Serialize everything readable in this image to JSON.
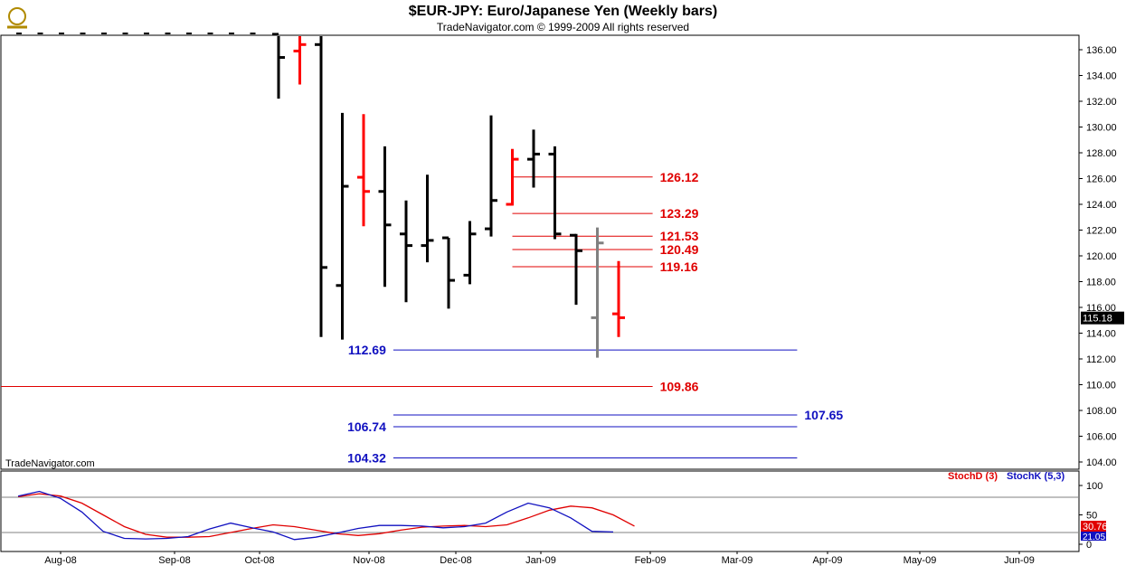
{
  "header": {
    "title": "$EUR-JPY:  Euro/Japanese Yen  (Weekly bars)",
    "subtitle": "TradeNavigator.com © 1999-2009 All rights reserved"
  },
  "watermark": "TradeNavigator.com",
  "colors": {
    "up": "#000000",
    "down": "#ff0000",
    "current": "#808080",
    "level_red": "#e00000",
    "level_blue": "#1010c0",
    "stochD": "#e00000",
    "stochK": "#1010c0"
  },
  "chart_data": {
    "type": "bar",
    "price_axis": {
      "min": 104,
      "max": 137,
      "ticks": [
        "104.00",
        "106.00",
        "108.00",
        "110.00",
        "112.00",
        "114.00",
        "116.00",
        "118.00",
        "120.00",
        "122.00",
        "124.00",
        "126.00",
        "128.00",
        "130.00",
        "132.00",
        "134.00",
        "136.00"
      ]
    },
    "x_labels": [
      "Aug-08",
      "Sep-08",
      "Oct-08",
      "Nov-08",
      "Dec-08",
      "Jan-09",
      "Feb-09",
      "Mar-09",
      "Apr-09",
      "May-09",
      "Jun-09"
    ],
    "last_price_label": "115.18",
    "ohlc": [
      {
        "o": 137.2,
        "h": 137.6,
        "l": 132.2,
        "c": 135.4,
        "col": "up"
      },
      {
        "o": 135.9,
        "h": 137.2,
        "l": 133.3,
        "c": 136.4,
        "col": "down"
      },
      {
        "o": 136.4,
        "h": 137.4,
        "l": 113.7,
        "c": 119.1,
        "col": "up"
      },
      {
        "o": 117.7,
        "h": 131.1,
        "l": 113.5,
        "c": 125.4,
        "col": "up"
      },
      {
        "o": 126.1,
        "h": 131.0,
        "l": 122.3,
        "c": 125.0,
        "col": "down"
      },
      {
        "o": 125.0,
        "h": 128.5,
        "l": 117.6,
        "c": 122.4,
        "col": "up"
      },
      {
        "o": 121.7,
        "h": 124.3,
        "l": 116.4,
        "c": 120.8,
        "col": "up"
      },
      {
        "o": 120.8,
        "h": 126.3,
        "l": 119.5,
        "c": 121.2,
        "col": "up"
      },
      {
        "o": 121.4,
        "h": 121.4,
        "l": 115.9,
        "c": 118.1,
        "col": "up"
      },
      {
        "o": 118.5,
        "h": 122.7,
        "l": 117.8,
        "c": 121.7,
        "col": "up"
      },
      {
        "o": 122.1,
        "h": 130.9,
        "l": 121.5,
        "c": 124.3,
        "col": "up"
      },
      {
        "o": 124.0,
        "h": 128.3,
        "l": 123.9,
        "c": 127.5,
        "col": "down"
      },
      {
        "o": 127.5,
        "h": 129.8,
        "l": 125.3,
        "c": 127.9,
        "col": "up"
      },
      {
        "o": 127.9,
        "h": 128.5,
        "l": 121.3,
        "c": 121.7,
        "col": "up"
      },
      {
        "o": 121.6,
        "h": 121.7,
        "l": 116.2,
        "c": 120.4,
        "col": "up"
      },
      {
        "o": 115.2,
        "h": 122.2,
        "l": 112.1,
        "c": 121.0,
        "col": "current"
      },
      {
        "o": 115.5,
        "h": 119.6,
        "l": 113.7,
        "c": 115.2,
        "col": "down"
      }
    ],
    "levels": [
      {
        "value": 126.12,
        "label": "126.12",
        "color": "red",
        "x1": 11,
        "x2": 17.6,
        "label_side": "right"
      },
      {
        "value": 123.29,
        "label": "123.29",
        "color": "red",
        "x1": 11,
        "x2": 17.6,
        "label_side": "right"
      },
      {
        "value": 121.53,
        "label": "121.53",
        "color": "red",
        "x1": 11,
        "x2": 17.6,
        "label_side": "right"
      },
      {
        "value": 120.49,
        "label": "120.49",
        "color": "red",
        "x1": 11,
        "x2": 17.6,
        "label_side": "right"
      },
      {
        "value": 119.16,
        "label": "119.16",
        "color": "red",
        "x1": 11,
        "x2": 17.6,
        "label_side": "right"
      },
      {
        "value": 112.69,
        "label": "112.69",
        "color": "blue",
        "x1": 5.4,
        "x2": 24.4,
        "label_side": "left"
      },
      {
        "value": 109.86,
        "label": "109.86",
        "color": "red",
        "x1": -13.5,
        "x2": 17.6,
        "label_side": "right"
      },
      {
        "value": 107.65,
        "label": "107.65",
        "color": "blue",
        "x1": 5.4,
        "x2": 24.4,
        "label_side": "right"
      },
      {
        "value": 106.74,
        "label": "106.74",
        "color": "blue",
        "x1": 5.4,
        "x2": 24.4,
        "label_side": "left"
      },
      {
        "value": 104.32,
        "label": "104.32",
        "color": "blue",
        "x1": 5.4,
        "x2": 24.4,
        "label_side": "left"
      }
    ],
    "stochastic": {
      "legend_d": "StochD (3)",
      "legend_k": "StochK (5,3)",
      "ticks": [
        "100",
        "50",
        "0"
      ],
      "levels": [
        80,
        20
      ],
      "last_d_label": "30.76",
      "last_k_label": "21.05",
      "stochD": [
        81,
        86,
        82,
        70,
        50,
        30,
        17,
        12,
        12,
        13,
        20,
        27,
        33,
        30,
        24,
        18,
        15,
        18,
        24,
        29,
        31,
        32,
        30,
        33,
        45,
        58,
        65,
        62,
        50,
        31
      ],
      "stochK": [
        82,
        90,
        78,
        55,
        22,
        10,
        9,
        10,
        13,
        26,
        36,
        28,
        21,
        8,
        12,
        19,
        27,
        32,
        32,
        31,
        28,
        30,
        36,
        55,
        70,
        62,
        45,
        22,
        21
      ]
    }
  }
}
